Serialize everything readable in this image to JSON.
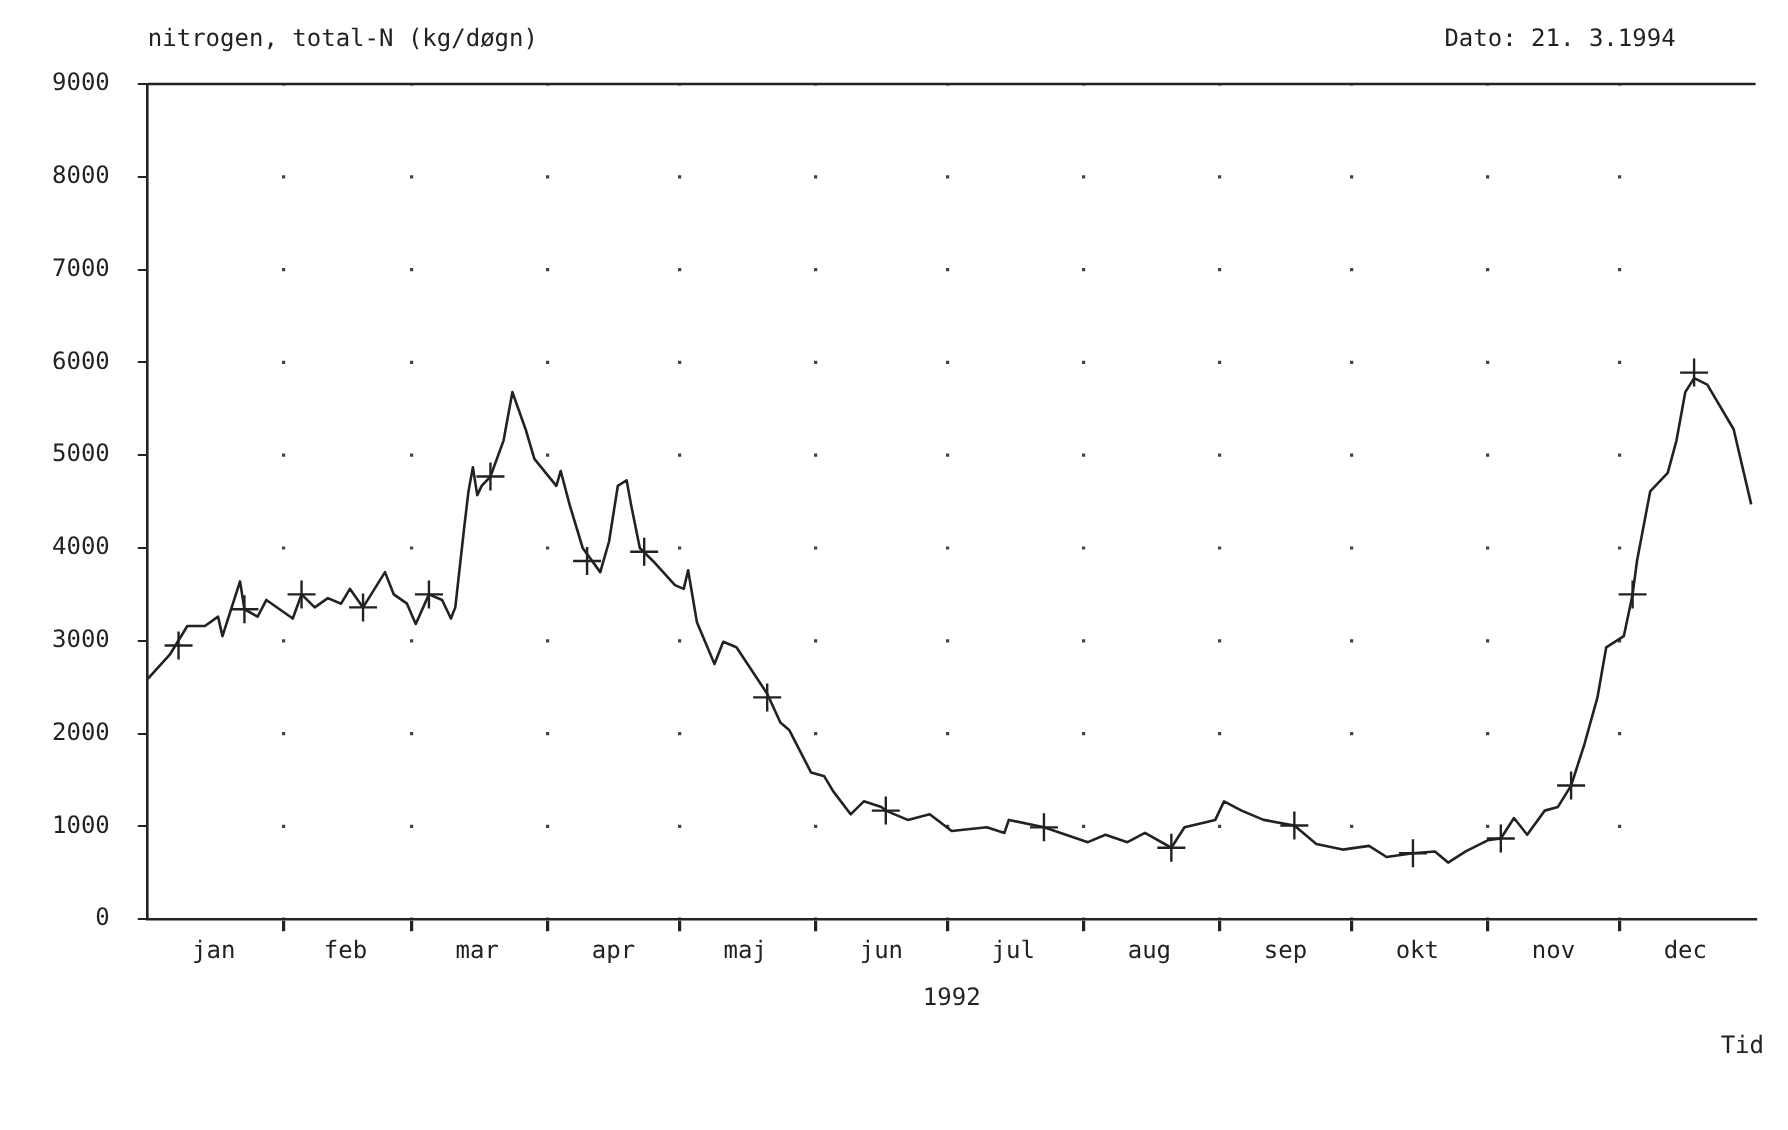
{
  "chart_data": {
    "type": "line",
    "title": "nitrogen, total-N (kg/døgn)",
    "subtitle": "Dato: 21. 3.1994",
    "xlabel": "1992",
    "annotations": [
      "Tid"
    ],
    "xlim": [
      "1992-01-01",
      "1993-01-01"
    ],
    "ylim": [
      0,
      9000
    ],
    "yticks": [
      0,
      1000,
      2000,
      3000,
      4000,
      5000,
      6000,
      7000,
      8000,
      9000
    ],
    "xticks": [
      {
        "value": "1992-01-16",
        "label": "jan"
      },
      {
        "value": "1992-02-01",
        "label": null
      },
      {
        "value": "1992-02-15",
        "label": "feb"
      },
      {
        "value": "1992-03-01",
        "label": null
      },
      {
        "value": "1992-03-16",
        "label": "mar"
      },
      {
        "value": "1992-04-01",
        "label": null
      },
      {
        "value": "1992-04-16",
        "label": "apr"
      },
      {
        "value": "1992-05-01",
        "label": null
      },
      {
        "value": "1992-05-16",
        "label": "maj"
      },
      {
        "value": "1992-06-01",
        "label": null
      },
      {
        "value": "1992-06-16",
        "label": "jun"
      },
      {
        "value": "1992-07-01",
        "label": null
      },
      {
        "value": "1992-07-16",
        "label": "jul"
      },
      {
        "value": "1992-08-01",
        "label": null
      },
      {
        "value": "1992-08-16",
        "label": "aug"
      },
      {
        "value": "1992-09-01",
        "label": null
      },
      {
        "value": "1992-09-16",
        "label": "sep"
      },
      {
        "value": "1992-10-01",
        "label": null
      },
      {
        "value": "1992-10-16",
        "label": "okt"
      },
      {
        "value": "1992-11-01",
        "label": null
      },
      {
        "value": "1992-11-16",
        "label": "nov"
      },
      {
        "value": "1992-12-01",
        "label": null
      },
      {
        "value": "1992-12-16",
        "label": "dec"
      }
    ],
    "grid": true,
    "legend": false,
    "series": [
      {
        "color": "#222222",
        "marker": "none",
        "line_style": "solid",
        "x": [
          "1992-01-01",
          "1992-01-06",
          "1992-01-10",
          "1992-01-14",
          "1992-01-17",
          "1992-01-18",
          "1992-01-22",
          "1992-01-23",
          "1992-01-26",
          "1992-01-28",
          "1992-01-31",
          "1992-02-03",
          "1992-02-05",
          "1992-02-08",
          "1992-02-11",
          "1992-02-14",
          "1992-02-16",
          "1992-02-19",
          "1992-02-24",
          "1992-02-26",
          "1992-02-29",
          "1992-03-02",
          "1992-03-05",
          "1992-03-08",
          "1992-03-10",
          "1992-03-11",
          "1992-03-13",
          "1992-03-14",
          "1992-03-15",
          "1992-03-16",
          "1992-03-17",
          "1992-03-19",
          "1992-03-22",
          "1992-03-24",
          "1992-03-27",
          "1992-03-29",
          "1992-04-03",
          "1992-04-04",
          "1992-04-06",
          "1992-04-09",
          "1992-04-13",
          "1992-04-15",
          "1992-04-17",
          "1992-04-19",
          "1992-04-20",
          "1992-04-22",
          "1992-04-25",
          "1992-04-30",
          "1992-05-02",
          "1992-05-03",
          "1992-05-05",
          "1992-05-09",
          "1992-05-11",
          "1992-05-14",
          "1992-05-21",
          "1992-05-24",
          "1992-05-26",
          "1992-05-31",
          "1992-06-03",
          "1992-06-05",
          "1992-06-09",
          "1992-06-12",
          "1992-06-16",
          "1992-06-17",
          "1992-06-22",
          "1992-06-27",
          "1992-07-02",
          "1992-07-10",
          "1992-07-14",
          "1992-07-15",
          "1992-07-23",
          "1992-08-02",
          "1992-08-06",
          "1992-08-11",
          "1992-08-15",
          "1992-08-21",
          "1992-08-24",
          "1992-08-31",
          "1992-09-02",
          "1992-09-06",
          "1992-09-11",
          "1992-09-18",
          "1992-09-23",
          "1992-09-29",
          "1992-10-05",
          "1992-10-09",
          "1992-10-15",
          "1992-10-20",
          "1992-10-23",
          "1992-10-27",
          "1992-11-01",
          "1992-11-04",
          "1992-11-07",
          "1992-11-10",
          "1992-11-14",
          "1992-11-17",
          "1992-11-20",
          "1992-11-23",
          "1992-11-26",
          "1992-11-28",
          "1992-12-02",
          "1992-12-04",
          "1992-12-05",
          "1992-12-08",
          "1992-12-12",
          "1992-12-14",
          "1992-12-16",
          "1992-12-18",
          "1992-12-21",
          "1992-12-27",
          "1992-12-31"
        ],
        "values": [
          2590,
          2850,
          3160,
          3160,
          3260,
          3050,
          3640,
          3340,
          3260,
          3440,
          3340,
          3240,
          3500,
          3360,
          3460,
          3400,
          3560,
          3360,
          3740,
          3500,
          3400,
          3180,
          3500,
          3440,
          3240,
          3360,
          4210,
          4610,
          4870,
          4570,
          4670,
          4770,
          5160,
          5680,
          5280,
          4960,
          4670,
          4830,
          4470,
          4000,
          3740,
          4070,
          4670,
          4730,
          4470,
          4000,
          3860,
          3600,
          3560,
          3760,
          3200,
          2750,
          2990,
          2930,
          2430,
          2120,
          2040,
          1580,
          1540,
          1380,
          1130,
          1270,
          1210,
          1170,
          1070,
          1130,
          950,
          990,
          930,
          1070,
          990,
          830,
          910,
          830,
          930,
          770,
          990,
          1070,
          1270,
          1170,
          1070,
          1010,
          810,
          750,
          790,
          670,
          710,
          730,
          610,
          730,
          850,
          870,
          1090,
          910,
          1170,
          1210,
          1440,
          1880,
          2390,
          2930,
          3050,
          3500,
          3860,
          4610,
          4810,
          5160,
          5680,
          5830,
          5760,
          5280,
          4470
        ]
      },
      {
        "type": "scatter",
        "color": "#222222",
        "marker": "cross",
        "x": [
          "1992-01-08",
          "1992-01-23",
          "1992-02-05",
          "1992-02-19",
          "1992-03-05",
          "1992-03-19",
          "1992-04-10",
          "1992-04-23",
          "1992-05-21",
          "1992-06-17",
          "1992-07-23",
          "1992-08-21",
          "1992-09-18",
          "1992-10-15",
          "1992-11-04",
          "1992-11-20",
          "1992-12-04",
          "1992-12-18"
        ],
        "values": [
          2950,
          3340,
          3500,
          3360,
          3500,
          4770,
          3860,
          3960,
          2390,
          1170,
          990,
          770,
          1010,
          710,
          870,
          1440,
          3500,
          5890
        ]
      }
    ]
  }
}
